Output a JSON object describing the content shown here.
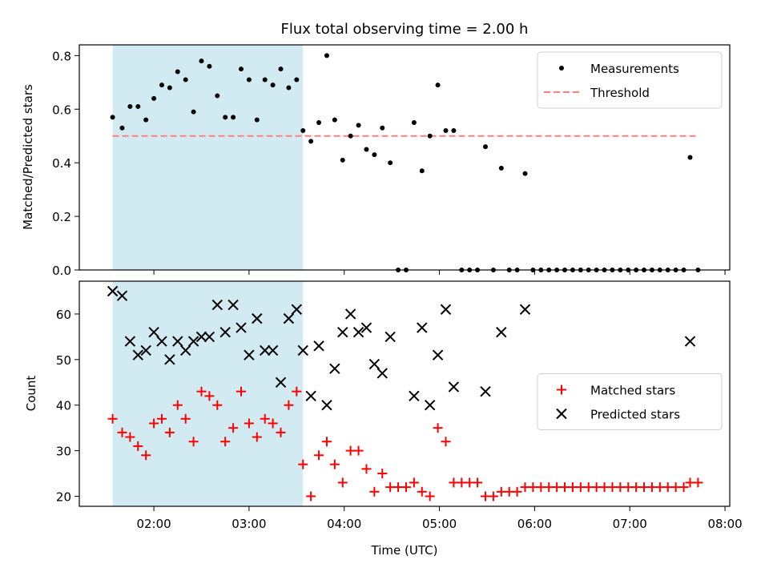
{
  "figure": {
    "title": "Flux total observing time = 2.00 h"
  },
  "chart_data": [
    {
      "type": "scatter",
      "ylabel": "Matched/Predicted stars",
      "xlabel": "",
      "xlim": [
        "01:13",
        "08:03"
      ],
      "ylim": [
        0,
        0.84
      ],
      "yticks": [
        0.0,
        0.2,
        0.4,
        0.6,
        0.8
      ],
      "ytick_labels": [
        "0.0",
        "0.2",
        "0.4",
        "0.6",
        "0.8"
      ],
      "grid": false,
      "legend_position": "top-right",
      "shaded_span": {
        "x": [
          "01:34",
          "03:34"
        ],
        "color": "#add8e6"
      },
      "threshold": {
        "name": "Threshold",
        "x": [
          "01:34",
          "07:43"
        ],
        "y": 0.5,
        "color": "#ff7f7f"
      },
      "series": [
        {
          "name": "Measurements",
          "color": "#000000",
          "marker": "dot",
          "points": [
            [
              "01:34",
              0.57
            ],
            [
              "01:40",
              0.53
            ],
            [
              "01:45",
              0.61
            ],
            [
              "01:50",
              0.61
            ],
            [
              "01:55",
              0.56
            ],
            [
              "02:00",
              0.64
            ],
            [
              "02:05",
              0.69
            ],
            [
              "02:10",
              0.68
            ],
            [
              "02:15",
              0.74
            ],
            [
              "02:20",
              0.71
            ],
            [
              "02:25",
              0.59
            ],
            [
              "02:30",
              0.78
            ],
            [
              "02:35",
              0.76
            ],
            [
              "02:40",
              0.65
            ],
            [
              "02:45",
              0.57
            ],
            [
              "02:50",
              0.57
            ],
            [
              "02:55",
              0.75
            ],
            [
              "03:00",
              0.71
            ],
            [
              "03:05",
              0.56
            ],
            [
              "03:10",
              0.71
            ],
            [
              "03:15",
              0.69
            ],
            [
              "03:20",
              0.75
            ],
            [
              "03:25",
              0.68
            ],
            [
              "03:30",
              0.71
            ],
            [
              "03:34",
              0.52
            ],
            [
              "03:39",
              0.48
            ],
            [
              "03:44",
              0.55
            ],
            [
              "03:49",
              0.8
            ],
            [
              "03:54",
              0.56
            ],
            [
              "03:59",
              0.41
            ],
            [
              "04:04",
              0.5
            ],
            [
              "04:09",
              0.54
            ],
            [
              "04:14",
              0.45
            ],
            [
              "04:19",
              0.43
            ],
            [
              "04:24",
              0.53
            ],
            [
              "04:29",
              0.4
            ],
            [
              "04:34",
              0.0
            ],
            [
              "04:39",
              0.0
            ],
            [
              "04:44",
              0.55
            ],
            [
              "04:49",
              0.37
            ],
            [
              "04:54",
              0.5
            ],
            [
              "04:59",
              0.69
            ],
            [
              "05:04",
              0.52
            ],
            [
              "05:09",
              0.52
            ],
            [
              "05:14",
              0.0
            ],
            [
              "05:19",
              0.0
            ],
            [
              "05:24",
              0.0
            ],
            [
              "05:29",
              0.46
            ],
            [
              "05:34",
              0.0
            ],
            [
              "05:39",
              0.38
            ],
            [
              "05:44",
              0.0
            ],
            [
              "05:49",
              0.0
            ],
            [
              "05:54",
              0.36
            ],
            [
              "05:59",
              0.0
            ],
            [
              "06:04",
              0.0
            ],
            [
              "06:09",
              0.0
            ],
            [
              "06:14",
              0.0
            ],
            [
              "06:19",
              0.0
            ],
            [
              "06:24",
              0.0
            ],
            [
              "06:29",
              0.0
            ],
            [
              "06:34",
              0.0
            ],
            [
              "06:39",
              0.0
            ],
            [
              "06:44",
              0.0
            ],
            [
              "06:49",
              0.0
            ],
            [
              "06:54",
              0.0
            ],
            [
              "06:59",
              0.0
            ],
            [
              "07:04",
              0.0
            ],
            [
              "07:09",
              0.0
            ],
            [
              "07:14",
              0.0
            ],
            [
              "07:19",
              0.0
            ],
            [
              "07:24",
              0.0
            ],
            [
              "07:29",
              0.0
            ],
            [
              "07:34",
              0.0
            ],
            [
              "07:38",
              0.42
            ],
            [
              "07:43",
              0.0
            ]
          ]
        }
      ]
    },
    {
      "type": "scatter",
      "ylabel": "Count",
      "xlabel": "Time (UTC)",
      "xlim": [
        "01:13",
        "08:03"
      ],
      "ylim": [
        17.8,
        67.2
      ],
      "yticks": [
        20,
        30,
        40,
        50,
        60
      ],
      "ytick_labels": [
        "20",
        "30",
        "40",
        "50",
        "60"
      ],
      "xticks": [
        "02:00",
        "03:00",
        "04:00",
        "05:00",
        "06:00",
        "07:00",
        "08:00"
      ],
      "xtick_labels": [
        "02:00",
        "03:00",
        "04:00",
        "05:00",
        "06:00",
        "07:00",
        "08:00"
      ],
      "grid": false,
      "legend_position": "center-right",
      "shaded_span": {
        "x": [
          "01:34",
          "03:34"
        ],
        "color": "#add8e6"
      },
      "series": [
        {
          "name": "Matched stars",
          "color": "#ff0000",
          "marker": "plus",
          "points": [
            [
              "01:34",
              37
            ],
            [
              "01:40",
              34
            ],
            [
              "01:45",
              33
            ],
            [
              "01:50",
              31
            ],
            [
              "01:55",
              29
            ],
            [
              "02:00",
              36
            ],
            [
              "02:05",
              37
            ],
            [
              "02:10",
              34
            ],
            [
              "02:15",
              40
            ],
            [
              "02:20",
              37
            ],
            [
              "02:25",
              32
            ],
            [
              "02:30",
              43
            ],
            [
              "02:35",
              42
            ],
            [
              "02:40",
              40
            ],
            [
              "02:45",
              32
            ],
            [
              "02:50",
              35
            ],
            [
              "02:55",
              43
            ],
            [
              "03:00",
              36
            ],
            [
              "03:05",
              33
            ],
            [
              "03:10",
              37
            ],
            [
              "03:15",
              36
            ],
            [
              "03:20",
              34
            ],
            [
              "03:25",
              40
            ],
            [
              "03:30",
              43
            ],
            [
              "03:34",
              27
            ],
            [
              "03:39",
              20
            ],
            [
              "03:44",
              29
            ],
            [
              "03:49",
              32
            ],
            [
              "03:54",
              27
            ],
            [
              "03:59",
              23
            ],
            [
              "04:04",
              30
            ],
            [
              "04:09",
              30
            ],
            [
              "04:14",
              26
            ],
            [
              "04:19",
              21
            ],
            [
              "04:24",
              25
            ],
            [
              "04:29",
              22
            ],
            [
              "04:34",
              22
            ],
            [
              "04:39",
              22
            ],
            [
              "04:44",
              23
            ],
            [
              "04:49",
              21
            ],
            [
              "04:54",
              20
            ],
            [
              "04:59",
              35
            ],
            [
              "05:04",
              32
            ],
            [
              "05:09",
              23
            ],
            [
              "05:14",
              23
            ],
            [
              "05:19",
              23
            ],
            [
              "05:24",
              23
            ],
            [
              "05:29",
              20
            ],
            [
              "05:34",
              20
            ],
            [
              "05:39",
              21
            ],
            [
              "05:44",
              21
            ],
            [
              "05:49",
              21
            ],
            [
              "05:54",
              22
            ],
            [
              "05:59",
              22
            ],
            [
              "06:04",
              22
            ],
            [
              "06:09",
              22
            ],
            [
              "06:14",
              22
            ],
            [
              "06:19",
              22
            ],
            [
              "06:24",
              22
            ],
            [
              "06:29",
              22
            ],
            [
              "06:34",
              22
            ],
            [
              "06:39",
              22
            ],
            [
              "06:44",
              22
            ],
            [
              "06:49",
              22
            ],
            [
              "06:54",
              22
            ],
            [
              "06:59",
              22
            ],
            [
              "07:04",
              22
            ],
            [
              "07:09",
              22
            ],
            [
              "07:14",
              22
            ],
            [
              "07:19",
              22
            ],
            [
              "07:24",
              22
            ],
            [
              "07:29",
              22
            ],
            [
              "07:34",
              22
            ],
            [
              "07:38",
              23
            ],
            [
              "07:43",
              23
            ]
          ]
        },
        {
          "name": "Predicted stars",
          "color": "#000000",
          "marker": "x",
          "points": [
            [
              "01:34",
              65
            ],
            [
              "01:40",
              64
            ],
            [
              "01:45",
              54
            ],
            [
              "01:50",
              51
            ],
            [
              "01:55",
              52
            ],
            [
              "02:00",
              56
            ],
            [
              "02:05",
              54
            ],
            [
              "02:10",
              50
            ],
            [
              "02:15",
              54
            ],
            [
              "02:20",
              52
            ],
            [
              "02:25",
              54
            ],
            [
              "02:30",
              55
            ],
            [
              "02:35",
              55
            ],
            [
              "02:40",
              62
            ],
            [
              "02:45",
              56
            ],
            [
              "02:50",
              62
            ],
            [
              "02:55",
              57
            ],
            [
              "03:00",
              51
            ],
            [
              "03:05",
              59
            ],
            [
              "03:10",
              52
            ],
            [
              "03:15",
              52
            ],
            [
              "03:20",
              45
            ],
            [
              "03:25",
              59
            ],
            [
              "03:30",
              61
            ],
            [
              "03:34",
              52
            ],
            [
              "03:39",
              42
            ],
            [
              "03:44",
              53
            ],
            [
              "03:49",
              40
            ],
            [
              "03:54",
              48
            ],
            [
              "03:59",
              56
            ],
            [
              "04:04",
              60
            ],
            [
              "04:09",
              56
            ],
            [
              "04:14",
              57
            ],
            [
              "04:19",
              49
            ],
            [
              "04:24",
              47
            ],
            [
              "04:29",
              55
            ],
            [
              "04:44",
              42
            ],
            [
              "04:49",
              57
            ],
            [
              "04:54",
              40
            ],
            [
              "04:59",
              51
            ],
            [
              "05:04",
              61
            ],
            [
              "05:09",
              44
            ],
            [
              "05:29",
              43
            ],
            [
              "05:39",
              56
            ],
            [
              "05:54",
              61
            ],
            [
              "07:38",
              54
            ]
          ]
        }
      ]
    }
  ]
}
